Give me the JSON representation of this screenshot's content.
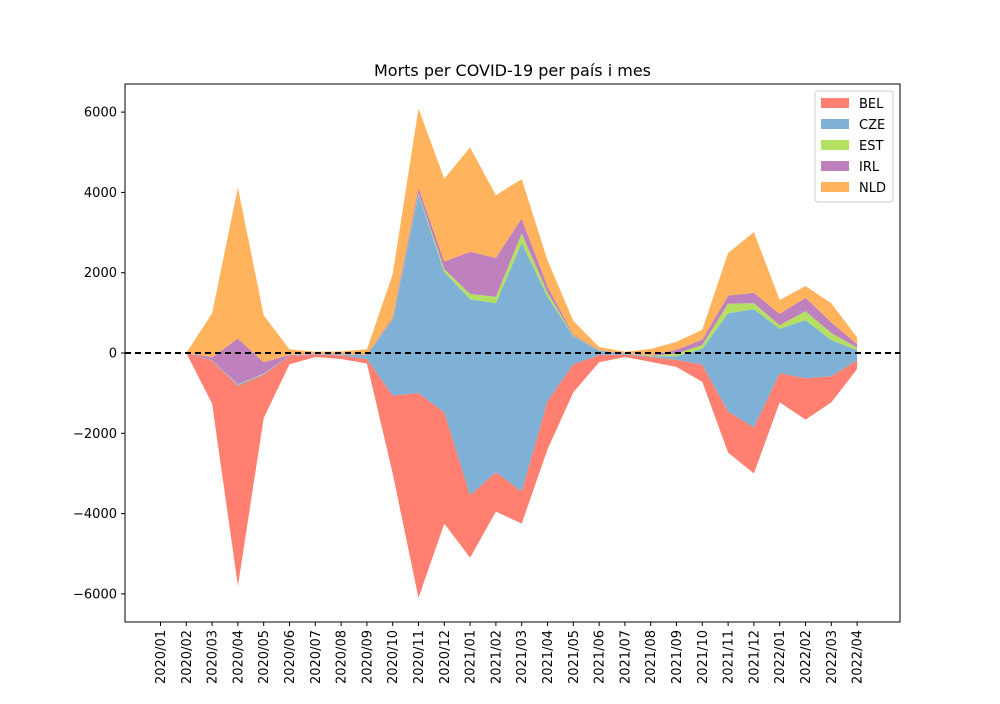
{
  "chart_data": {
    "type": "area",
    "title": "Morts per COVID-19 per país i mes",
    "xlabel": "",
    "ylabel": "",
    "categories": [
      "2020/01",
      "2020/02",
      "2020/03",
      "2020/04",
      "2020/05",
      "2020/06",
      "2020/07",
      "2020/08",
      "2020/09",
      "2020/10",
      "2020/11",
      "2020/12",
      "2021/01",
      "2021/02",
      "2021/03",
      "2021/04",
      "2021/05",
      "2021/06",
      "2021/07",
      "2021/08",
      "2021/09",
      "2021/10",
      "2021/11",
      "2021/12",
      "2022/01",
      "2022/02",
      "2022/03",
      "2022/04"
    ],
    "ylim": [
      -6700,
      6700
    ],
    "yticks": [
      6000,
      4000,
      2000,
      0,
      -2000,
      -4000,
      -6000
    ],
    "ytick_labels": [
      "6000",
      "4000",
      "2000",
      "0",
      "−2000",
      "−4000",
      "−6000"
    ],
    "zero_line": true,
    "grid": false,
    "legend_position": "top-right",
    "baseline": [
      null,
      0,
      -1260,
      -5800,
      -1620,
      -280,
      -100,
      -150,
      -260,
      -3000,
      -6100,
      -4250,
      -5100,
      -3950,
      -4250,
      -2400,
      -980,
      -230,
      -100,
      -220,
      -350,
      -720,
      -2480,
      -3000,
      -1230,
      -1660,
      -1230,
      -400
    ],
    "series": [
      {
        "name": "BEL",
        "color": "#ff8070",
        "values": [
          null,
          0,
          1070,
          4980,
          1080,
          200,
          60,
          90,
          110,
          1940,
          5100,
          2770,
          1560,
          980,
          800,
          1200,
          700,
          180,
          60,
          120,
          180,
          430,
          1020,
          1150,
          730,
          1030,
          650,
          220
        ]
      },
      {
        "name": "CZE",
        "color": "#7fb0d5",
        "values": [
          null,
          0,
          10,
          30,
          20,
          10,
          10,
          20,
          100,
          1880,
          4950,
          3490,
          4880,
          4210,
          6190,
          2600,
          690,
          110,
          20,
          20,
          90,
          390,
          2450,
          2940,
          1100,
          1450,
          900,
          250
        ]
      },
      {
        "name": "EST",
        "color": "#b4e061",
        "values": [
          null,
          0,
          0,
          10,
          10,
          0,
          0,
          0,
          0,
          10,
          30,
          80,
          130,
          160,
          240,
          110,
          20,
          0,
          0,
          10,
          60,
          100,
          240,
          150,
          90,
          220,
          180,
          60
        ]
      },
      {
        "name": "IRL",
        "color": "#bf80be",
        "values": [
          null,
          0,
          70,
          1140,
          280,
          20,
          10,
          10,
          10,
          50,
          130,
          190,
          1050,
          970,
          370,
          150,
          30,
          10,
          10,
          10,
          100,
          130,
          200,
          260,
          280,
          340,
          260,
          90
        ]
      },
      {
        "name": "NLD",
        "color": "#ffb35c",
        "values": [
          null,
          0,
          1100,
          3760,
          1170,
          140,
          50,
          70,
          130,
          1080,
          1980,
          2060,
          2600,
          1560,
          980,
          650,
          340,
          80,
          40,
          160,
          200,
          250,
          1060,
          1510,
          350,
          290,
          480,
          170
        ]
      }
    ]
  }
}
